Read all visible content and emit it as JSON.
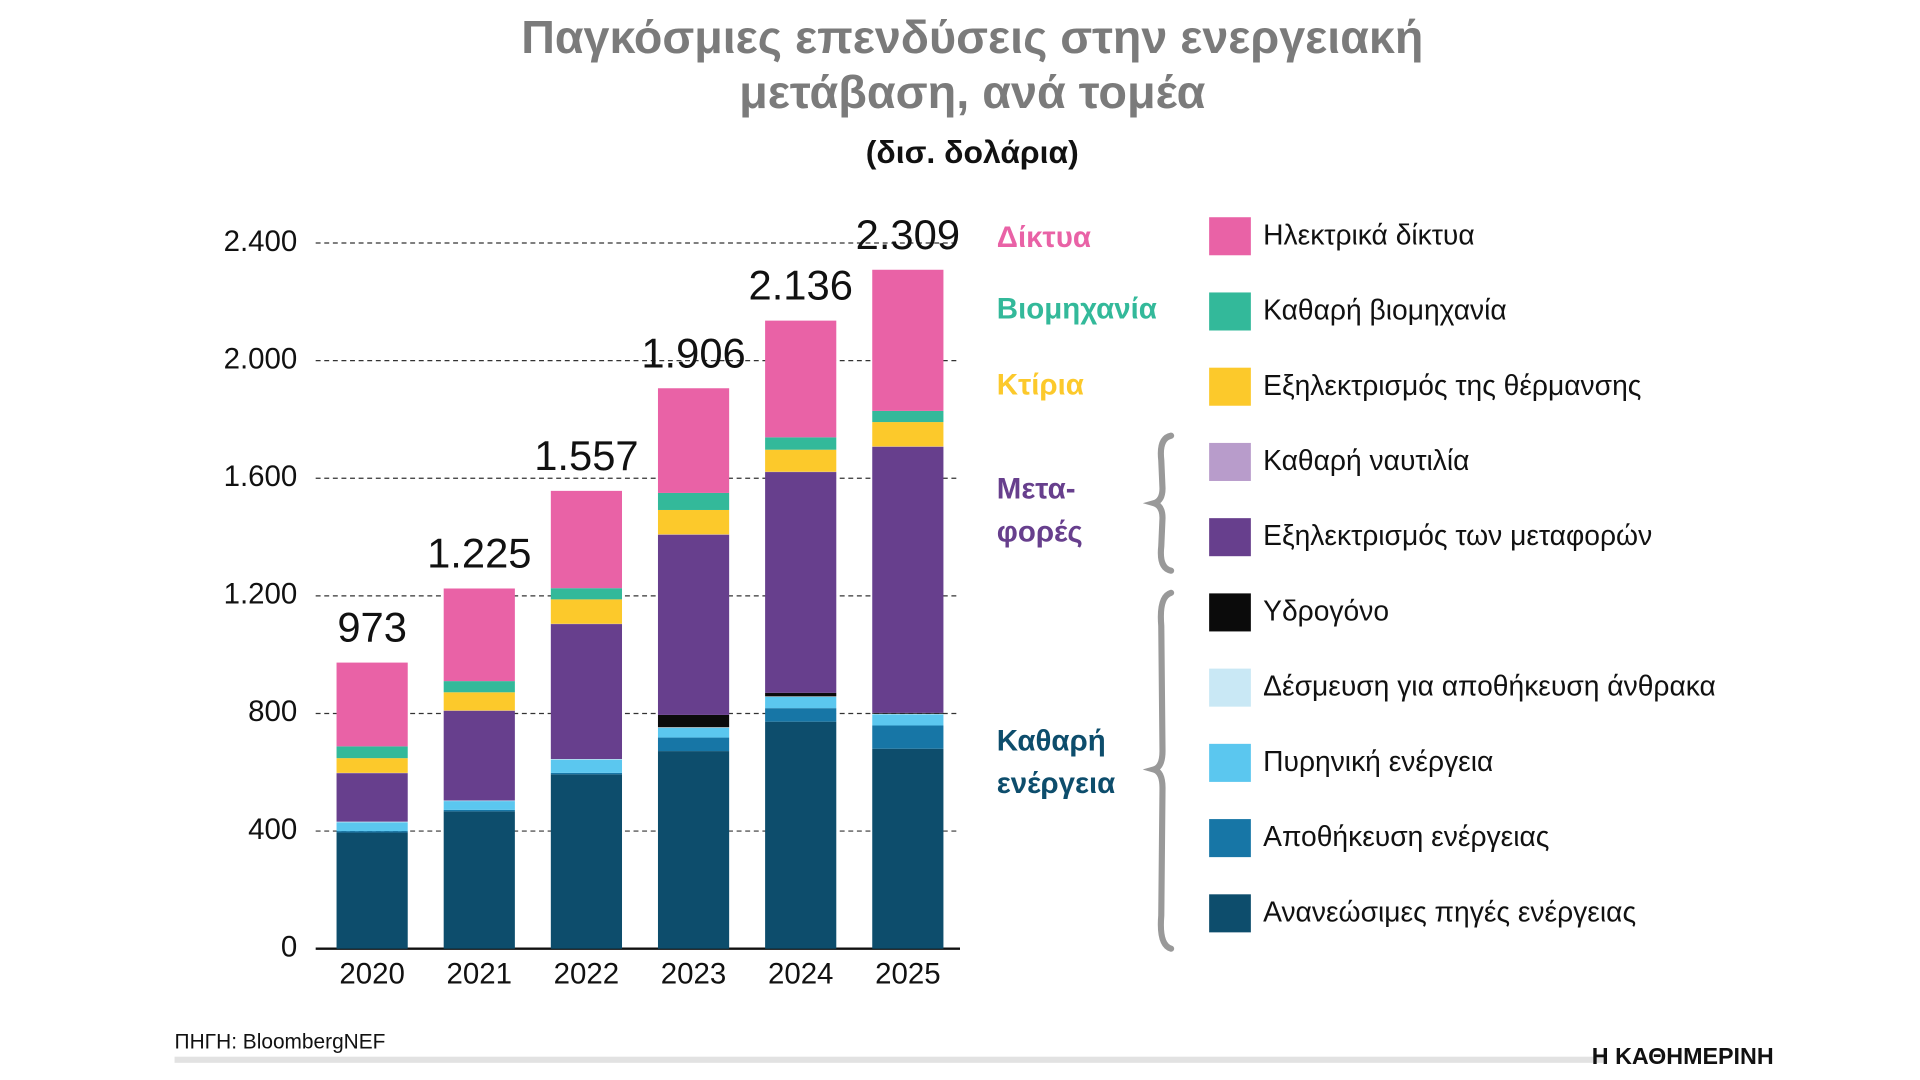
{
  "chart_data": {
    "type": "stacked_bar",
    "title": [
      "Παγκόσμιες επενδύσεις στην ενεργειακή",
      "μετάβαση, ανά τομέα"
    ],
    "subtitle": "(δισ. δολάρια)",
    "source": "ΠΗΓΗ: BloombergNEF",
    "brand": "Η ΚΑΘΗΜΕΡΙΝΗ",
    "categories": [
      "2020",
      "2021",
      "2022",
      "2023",
      "2024",
      "2025"
    ],
    "ylim": [
      0,
      2400
    ],
    "yticks": [
      0,
      400,
      800,
      {
        "value": 1200,
        "label": "1.200"
      },
      {
        "value": 1600,
        "label": "1.600"
      },
      {
        "value": 2000,
        "label": "2.000"
      },
      {
        "value": 2400,
        "label": "2.400"
      }
    ],
    "grid": true,
    "series": [
      {
        "name": "Ανανεώσιμες πηγές ενέργειας",
        "color": "#0d4d6c",
        "values": [
          395,
          467,
          593,
          672,
          772,
          680
        ]
      },
      {
        "name": "Αποθήκευση ενέργειας",
        "color": "#1776a6",
        "values": [
          5,
          5,
          5,
          46,
          46,
          79
        ]
      },
      {
        "name": "Πυρηνική ενέργεια",
        "color": "#5bc7ef",
        "values": [
          30,
          30,
          45,
          33,
          38,
          38
        ]
      },
      {
        "name": "Δέσμευση για αποθήκευση άνθρακα",
        "color": "#c9e8f5",
        "values": [
          2,
          2,
          2,
          2,
          2,
          2
        ]
      },
      {
        "name": "Υδρογόνο",
        "color": "#0b0b0b",
        "values": [
          0,
          0,
          0,
          42,
          12,
          3
        ]
      },
      {
        "name": "Εξηλεκτρισμός των μεταφορών",
        "color": "#673f8d",
        "values": [
          165,
          305,
          459,
          613,
          751,
          905
        ]
      },
      {
        "name": "Καθαρή ναυτιλία",
        "color": "#b89ccb",
        "values": [
          1,
          1,
          1,
          1,
          1,
          1
        ]
      },
      {
        "name": "Εξηλεκτρισμός της θέρμανσης",
        "color": "#fcc92b",
        "values": [
          50,
          62,
          83,
          83,
          75,
          83
        ]
      },
      {
        "name": "Καθαρή βιομηχανία",
        "color": "#33b99a",
        "values": [
          40,
          38,
          38,
          58,
          42,
          38
        ]
      },
      {
        "name": "Ηλεκτρικά δίκτυα",
        "color": "#e962a6",
        "values": [
          285,
          315,
          331,
          356,
          397,
          480
        ]
      }
    ],
    "totals": {
      "values": [
        973,
        1225,
        1557,
        1906,
        2136,
        2309
      ],
      "value_labels": [
        "973",
        "1.225",
        "1.557",
        "1.906",
        "2.136",
        "2.309"
      ]
    },
    "groups": [
      {
        "label": [
          "Δίκτυα"
        ],
        "color": "#e962a6"
      },
      {
        "label": [
          "Βιομηχανία"
        ],
        "color": "#33b99a"
      },
      {
        "label": [
          "Κτίρια"
        ],
        "color": "#fcc92b"
      },
      {
        "label": [
          "Μετα-",
          "φορές"
        ],
        "color": "#673f8d"
      },
      {
        "label": [
          "Καθαρή",
          "ενέργεια"
        ],
        "color": "#0d4d6c"
      }
    ]
  }
}
